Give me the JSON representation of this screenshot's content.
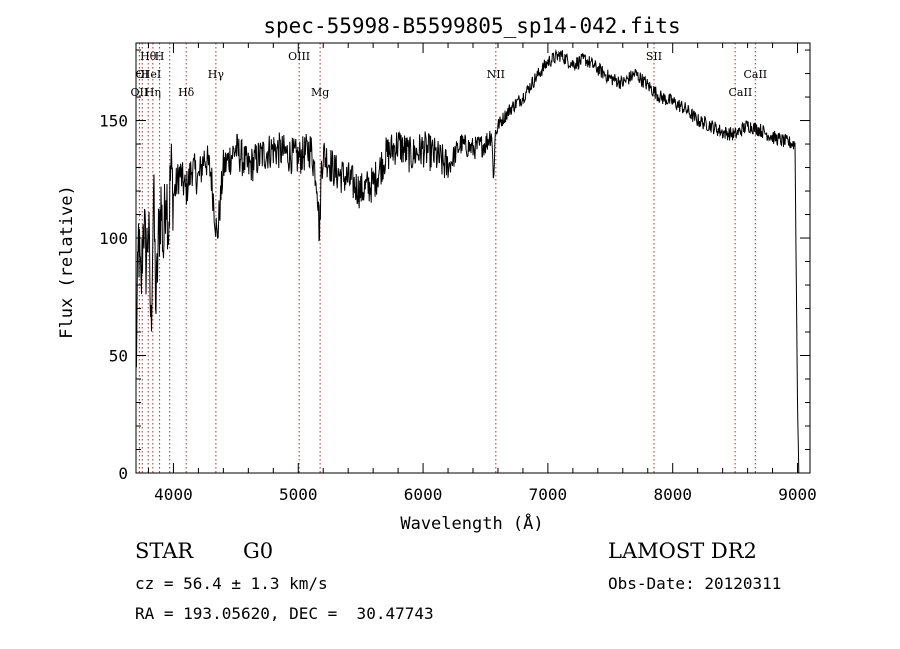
{
  "chart_data": {
    "type": "line",
    "title": "spec-55998-B5599805_sp14-042.fits",
    "xlabel": "Wavelength (Å)",
    "ylabel": "Flux (relative)",
    "xlim": [
      3700,
      9100
    ],
    "ylim": [
      0,
      183
    ],
    "xticks": [
      4000,
      5000,
      6000,
      7000,
      8000,
      9000
    ],
    "yticks": [
      0,
      50,
      100,
      150
    ],
    "grid": false,
    "series": [
      {
        "name": "spectrum",
        "x": [
          3700,
          3720,
          3740,
          3760,
          3780,
          3800,
          3820,
          3840,
          3860,
          3880,
          3900,
          3920,
          3940,
          3960,
          3980,
          4000,
          4050,
          4100,
          4150,
          4200,
          4250,
          4300,
          4350,
          4400,
          4500,
          4600,
          4700,
          4800,
          4900,
          5000,
          5100,
          5150,
          5170,
          5185,
          5200,
          5250,
          5300,
          5400,
          5500,
          5600,
          5700,
          5800,
          5900,
          6000,
          6100,
          6200,
          6300,
          6400,
          6500,
          6550,
          6563,
          6580,
          6600,
          6700,
          6800,
          6900,
          7000,
          7100,
          7200,
          7300,
          7400,
          7500,
          7600,
          7700,
          7800,
          7900,
          8000,
          8100,
          8200,
          8300,
          8400,
          8500,
          8600,
          8700,
          8800,
          8900,
          8980,
          9000,
          9010
        ],
        "y": [
          40,
          100,
          75,
          110,
          90,
          105,
          60,
          120,
          70,
          100,
          115,
          95,
          125,
          105,
          130,
          118,
          128,
          120,
          130,
          125,
          135,
          128,
          100,
          130,
          138,
          130,
          135,
          138,
          136,
          134,
          138,
          125,
          100,
          130,
          136,
          132,
          128,
          125,
          120,
          123,
          135,
          140,
          135,
          138,
          135,
          130,
          140,
          138,
          140,
          145,
          125,
          145,
          148,
          155,
          160,
          168,
          175,
          178,
          174,
          176,
          172,
          168,
          166,
          170,
          165,
          160,
          158,
          155,
          150,
          148,
          145,
          144,
          148,
          146,
          143,
          141,
          140,
          30,
          0
        ]
      }
    ],
    "line_labels": [
      {
        "label": "Hθ",
        "x": 3798,
        "tier": 0
      },
      {
        "label": "H",
        "x": 3889,
        "tier": 0
      },
      {
        "label": "OI",
        "x": 3750,
        "tier": 1
      },
      {
        "label": "HeI",
        "x": 3820,
        "tier": 1
      },
      {
        "label": "Hγ",
        "x": 4340,
        "tier": 1
      },
      {
        "label": "OII",
        "x": 3727,
        "tier": 2
      },
      {
        "label": "Hη",
        "x": 3835,
        "tier": 2
      },
      {
        "label": "Hδ",
        "x": 4102,
        "tier": 2
      },
      {
        "label": "OIII",
        "x": 5007,
        "tier": 0
      },
      {
        "label": "Mg",
        "x": 5175,
        "tier": 2
      },
      {
        "label": "NII",
        "x": 6583,
        "tier": 1
      },
      {
        "label": "SII",
        "x": 7850,
        "tier": 0
      },
      {
        "label": "CaII",
        "x": 8542,
        "tier": 2
      },
      {
        "label": "CaII",
        "x": 8662,
        "tier": 1
      }
    ],
    "line_markers_x": [
      3727,
      3750,
      3798,
      3835,
      3889,
      3970,
      4102,
      4340,
      5007,
      5175,
      6583,
      7850,
      8500,
      8662
    ]
  },
  "info": {
    "object_class": "STAR",
    "subclass": "G0",
    "survey": "LAMOST DR2",
    "cz": "cz = 56.4 ± 1.3 km/s",
    "obs_date": "Obs-Date: 20120311",
    "coords": "RA = 193.05620, DEC =  30.47743"
  }
}
